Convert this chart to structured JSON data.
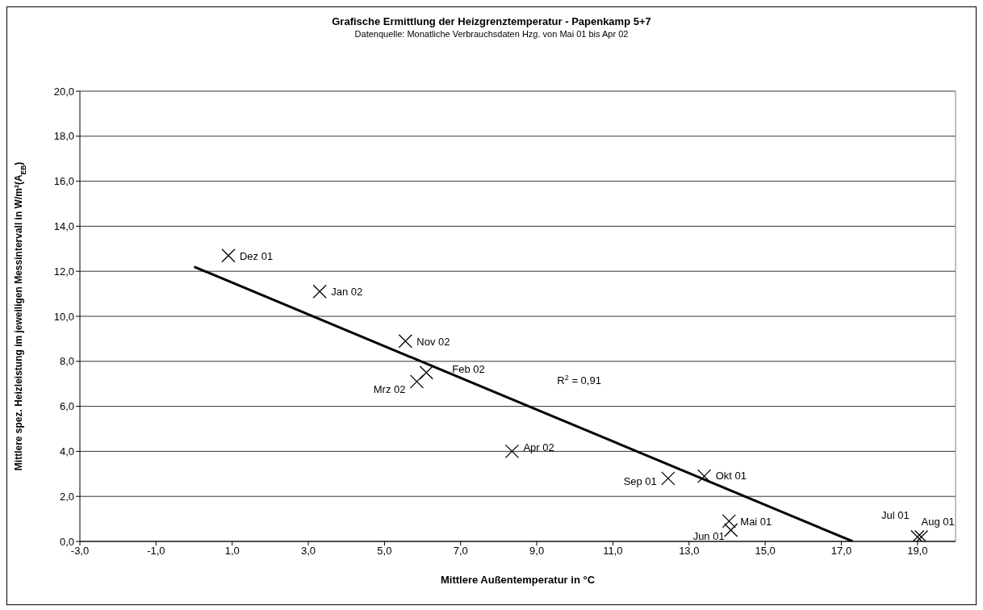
{
  "chart_data": {
    "type": "scatter",
    "title": "Grafische Ermittlung der Heizgrenztemperatur - Papenkamp 5+7",
    "subtitle": "Datenquelle: Monatliche Verbrauchsdaten Hzg. von Mai 01 bis Apr 02",
    "xlabel": "Mittlere Außentemperatur in °C",
    "ylabel": "Mittlere spez. Heizleistung im jeweiligen Messintervall in W/m²(A$_{EB}$)",
    "xlim": [
      -3,
      20
    ],
    "xticks": [
      {
        "value": -3,
        "label": "-3,0"
      },
      {
        "value": -1,
        "label": "-1,0"
      },
      {
        "value": 1,
        "label": "1,0"
      },
      {
        "value": 3,
        "label": "3,0"
      },
      {
        "value": 5,
        "label": "5,0"
      },
      {
        "value": 7,
        "label": "7,0"
      },
      {
        "value": 9,
        "label": "9,0"
      },
      {
        "value": 11,
        "label": "11,0"
      },
      {
        "value": 13,
        "label": "13,0"
      },
      {
        "value": 15,
        "label": "15,0"
      },
      {
        "value": 17,
        "label": "17,0"
      },
      {
        "value": 19,
        "label": "19,0"
      }
    ],
    "ylim": [
      0,
      20
    ],
    "yticks": [
      {
        "value": 0,
        "label": "0,0"
      },
      {
        "value": 2,
        "label": "2,0"
      },
      {
        "value": 4,
        "label": "4,0"
      },
      {
        "value": 6,
        "label": "6,0"
      },
      {
        "value": 8,
        "label": "8,0"
      },
      {
        "value": 10,
        "label": "10,0"
      },
      {
        "value": 12,
        "label": "12,0"
      },
      {
        "value": 14,
        "label": "14,0"
      },
      {
        "value": 16,
        "label": "16,0"
      },
      {
        "value": 18,
        "label": "18,0"
      },
      {
        "value": 20,
        "label": "20,0"
      }
    ],
    "grid": "y",
    "legend": false,
    "marker": "cross",
    "series": [
      {
        "color": "#000000",
        "x": [
          0.9,
          3.3,
          5.55,
          6.1,
          5.85,
          8.35,
          12.45,
          13.4,
          14.05,
          14.1,
          19.0,
          19.1
        ],
        "values": [
          12.7,
          11.1,
          8.9,
          7.5,
          7.1,
          4.0,
          2.8,
          2.9,
          0.9,
          0.5,
          0.2,
          0.2
        ]
      },
      {
        "type": "line",
        "color": "#000000",
        "marker": "none",
        "x": [
          0.0,
          17.3
        ],
        "values": [
          12.2,
          0.0
        ]
      }
    ],
    "annotations": [
      {
        "text": "Dez 01",
        "x": 0.9,
        "y": 12.7
      },
      {
        "text": "Jan 02",
        "x": 3.3,
        "y": 11.1
      },
      {
        "text": "Nov 02",
        "x": 5.55,
        "y": 8.9
      },
      {
        "text": "Feb 02",
        "x": 6.1,
        "y": 7.5
      },
      {
        "text": "Mrz 02",
        "x": 5.85,
        "y": 7.1
      },
      {
        "text": "Apr 02",
        "x": 8.35,
        "y": 4.0
      },
      {
        "text": "Sep 01",
        "x": 12.45,
        "y": 2.8
      },
      {
        "text": "Okt 01",
        "x": 13.4,
        "y": 2.9
      },
      {
        "text": "Mai 01",
        "x": 14.05,
        "y": 0.9
      },
      {
        "text": "Jun 01",
        "x": 14.1,
        "y": 0.5
      },
      {
        "text": "Jul 01",
        "x": 19.0,
        "y": 0.2
      },
      {
        "text": "Aug 01",
        "x": 19.1,
        "y": 0.2
      },
      "R$^{2}$ = 0,91"
    ]
  }
}
